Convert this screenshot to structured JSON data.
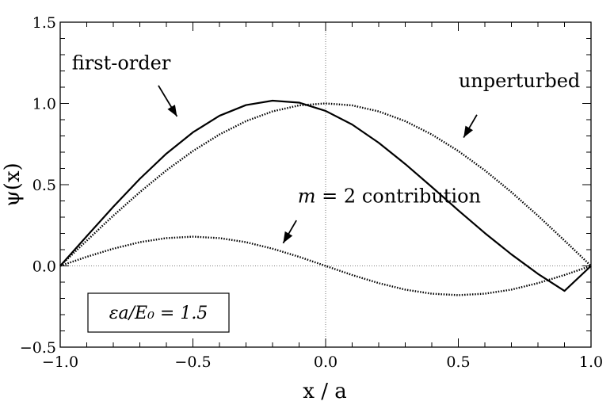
{
  "chart_data": {
    "type": "line",
    "xlabel": "x / a",
    "ylabel": "ψ(x)",
    "xlim": [
      -1.0,
      1.0
    ],
    "ylim": [
      -0.5,
      1.5
    ],
    "x_ticks": [
      "−1.0",
      "−0.5",
      "0.0",
      "0.5",
      "1.0"
    ],
    "y_ticks": [
      "−0.5",
      "0.0",
      "0.5",
      "1.0",
      "1.5"
    ],
    "x_tick_values": [
      -1.0,
      -0.5,
      0.0,
      0.5,
      1.0
    ],
    "y_tick_values": [
      -0.5,
      0.0,
      0.5,
      1.0,
      1.5
    ],
    "grid": false,
    "reference_lines": {
      "x": 0.0,
      "y": 0.0
    },
    "series": [
      {
        "name": "first-order",
        "style": "solid",
        "x": [
          -1.0,
          -0.9,
          -0.8,
          -0.7,
          -0.6,
          -0.5,
          -0.4,
          -0.3,
          -0.2,
          -0.1,
          0.0,
          0.1,
          0.2,
          0.3,
          0.4,
          0.5,
          0.6,
          0.7,
          0.8,
          0.9,
          1.0
        ],
        "y": [
          0.0,
          0.183,
          0.364,
          0.536,
          0.691,
          0.822,
          0.924,
          0.99,
          1.017,
          1.005,
          0.954,
          0.87,
          0.758,
          0.627,
          0.486,
          0.342,
          0.202,
          0.071,
          -0.049,
          -0.154,
          0.0
        ]
      },
      {
        "name": "unperturbed",
        "style": "dotted",
        "x": [
          -1.0,
          -0.9,
          -0.8,
          -0.7,
          -0.6,
          -0.5,
          -0.4,
          -0.3,
          -0.2,
          -0.1,
          0.0,
          0.1,
          0.2,
          0.3,
          0.4,
          0.5,
          0.6,
          0.7,
          0.8,
          0.9,
          1.0
        ],
        "y": [
          0.0,
          0.156,
          0.309,
          0.454,
          0.588,
          0.707,
          0.809,
          0.891,
          0.951,
          0.988,
          1.0,
          0.988,
          0.951,
          0.891,
          0.809,
          0.707,
          0.588,
          0.454,
          0.309,
          0.156,
          0.0
        ]
      },
      {
        "name": "m = 2 contribution",
        "style": "dotted",
        "x": [
          -1.0,
          -0.9,
          -0.8,
          -0.7,
          -0.6,
          -0.5,
          -0.4,
          -0.3,
          -0.2,
          -0.1,
          0.0,
          0.1,
          0.2,
          0.3,
          0.4,
          0.5,
          0.6,
          0.7,
          0.8,
          0.9,
          1.0
        ],
        "y": [
          0.0,
          0.056,
          0.106,
          0.146,
          0.171,
          0.18,
          0.171,
          0.146,
          0.106,
          0.056,
          0.0,
          -0.056,
          -0.106,
          -0.146,
          -0.171,
          -0.18,
          -0.171,
          -0.146,
          -0.106,
          -0.056,
          0.0
        ]
      }
    ],
    "annotations": [
      {
        "text": "first-order",
        "x": -0.77,
        "y": 1.21,
        "arrow_from": [
          -0.63,
          1.11
        ],
        "arrow_to": [
          -0.56,
          0.92
        ]
      },
      {
        "text": "unperturbed",
        "x": 0.73,
        "y": 1.1,
        "arrow_from": [
          0.57,
          0.93
        ],
        "arrow_to": [
          0.52,
          0.79
        ]
      },
      {
        "text_italic": "m",
        "text": " = 2 contribution",
        "x": 0.24,
        "y": 0.39,
        "arrow_from": [
          -0.11,
          0.28
        ],
        "arrow_to": [
          -0.16,
          0.14
        ]
      }
    ],
    "inset_box": {
      "text": "εa/E₀ = 1.5",
      "x": -0.78,
      "y": -0.3
    }
  }
}
